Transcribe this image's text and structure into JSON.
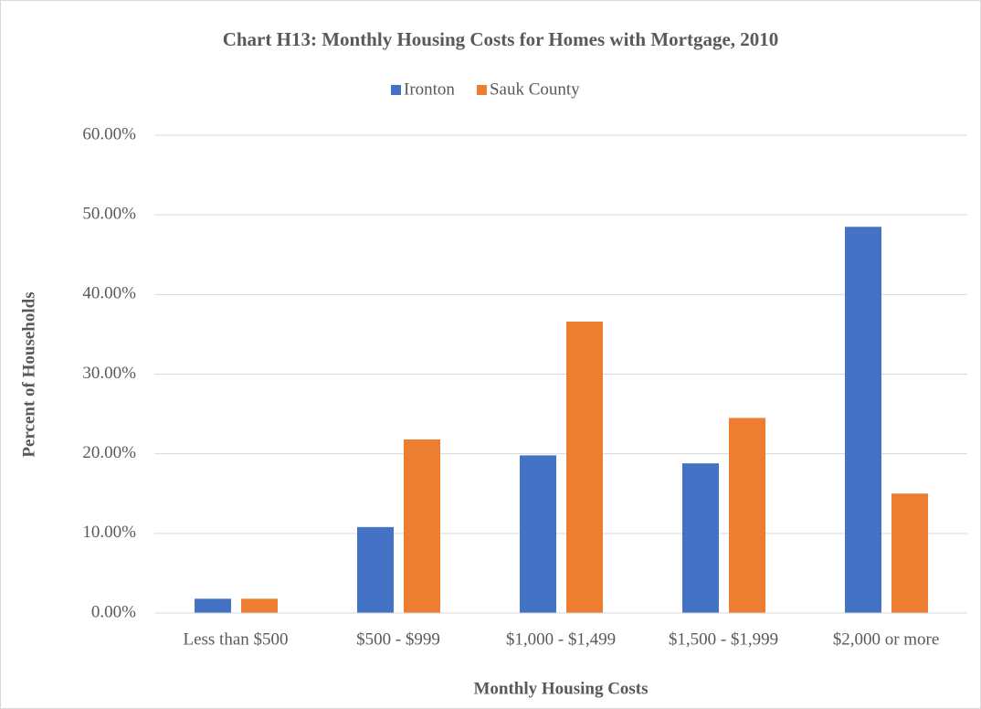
{
  "chart_data": {
    "type": "bar",
    "title": "Chart H13: Monthly Housing Costs for Homes with Mortgage, 2010",
    "x_label": "Monthly Housing Costs",
    "y_label": "Percent of Households",
    "categories": [
      "Less than $500",
      "$500 - $999",
      "$1,000 - $1,499",
      "$1,500 - $1,999",
      "$2,000 or more"
    ],
    "series": [
      {
        "name": "Ironton",
        "color": "#4472c4",
        "values": [
          1.8,
          10.8,
          19.8,
          18.8,
          48.5
        ]
      },
      {
        "name": "Sauk County",
        "color": "#ed7d31",
        "values": [
          1.8,
          21.8,
          36.6,
          24.5,
          15.0
        ]
      }
    ],
    "ylim": [
      0,
      60
    ],
    "yticks": [
      {
        "value": 0,
        "label": "0.00%"
      },
      {
        "value": 10,
        "label": "10.00%"
      },
      {
        "value": 20,
        "label": "20.00%"
      },
      {
        "value": 30,
        "label": "30.00%"
      },
      {
        "value": 40,
        "label": "40.00%"
      },
      {
        "value": 50,
        "label": "50.00%"
      },
      {
        "value": 60,
        "label": "60.00%"
      }
    ],
    "grid": true,
    "legend": "top"
  }
}
